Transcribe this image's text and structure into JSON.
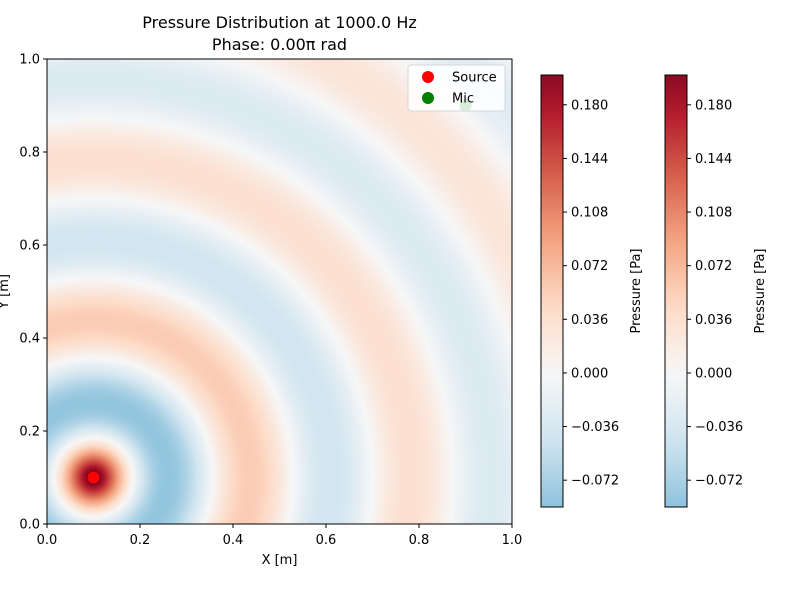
{
  "chart_data": {
    "type": "heatmap",
    "title": "Pressure Distribution at 1000.0 Hz",
    "subtitle": "Phase: 0.00π rad",
    "xlabel": "X [m]",
    "ylabel": "Y [m]",
    "xlim": [
      0.0,
      1.0
    ],
    "ylim": [
      0.0,
      1.0
    ],
    "x_ticks": [
      "0.0",
      "0.2",
      "0.4",
      "0.6",
      "0.8",
      "1.0"
    ],
    "y_ticks": [
      "0.0",
      "0.2",
      "0.4",
      "0.6",
      "0.8",
      "1.0"
    ],
    "field": {
      "description": "Monopole-like wave field radiating from the source",
      "frequency_hz": 1000.0,
      "phase_pi_rad": 0.0,
      "max_pa": 0.2,
      "min_pa": -0.09
    },
    "markers": [
      {
        "name": "Source",
        "x": 0.1,
        "y": 0.1,
        "color": "#ff0000"
      },
      {
        "name": "Mic",
        "x": 0.9,
        "y": 0.9,
        "color": "#008000"
      }
    ],
    "legend": {
      "placement": "top-right",
      "entries": [
        "Source",
        "Mic"
      ]
    },
    "colorbars": [
      {
        "label": "Pressure [Pa]",
        "vmin": -0.09,
        "vmax": 0.2,
        "ticks": [
          "−0.072",
          "−0.036",
          "0.000",
          "0.036",
          "0.072",
          "0.108",
          "0.144",
          "0.180"
        ],
        "tick_values": [
          -0.072,
          -0.036,
          0.0,
          0.036,
          0.072,
          0.108,
          0.144,
          0.18
        ]
      },
      {
        "label": "Pressure [Pa]",
        "vmin": -0.09,
        "vmax": 0.2,
        "ticks": [
          "−0.072",
          "−0.036",
          "0.000",
          "0.036",
          "0.072",
          "0.108",
          "0.144",
          "0.180"
        ],
        "tick_values": [
          -0.072,
          -0.036,
          0.0,
          0.036,
          0.072,
          0.108,
          0.144,
          0.18
        ]
      }
    ],
    "colormap": "RdBu_r"
  }
}
